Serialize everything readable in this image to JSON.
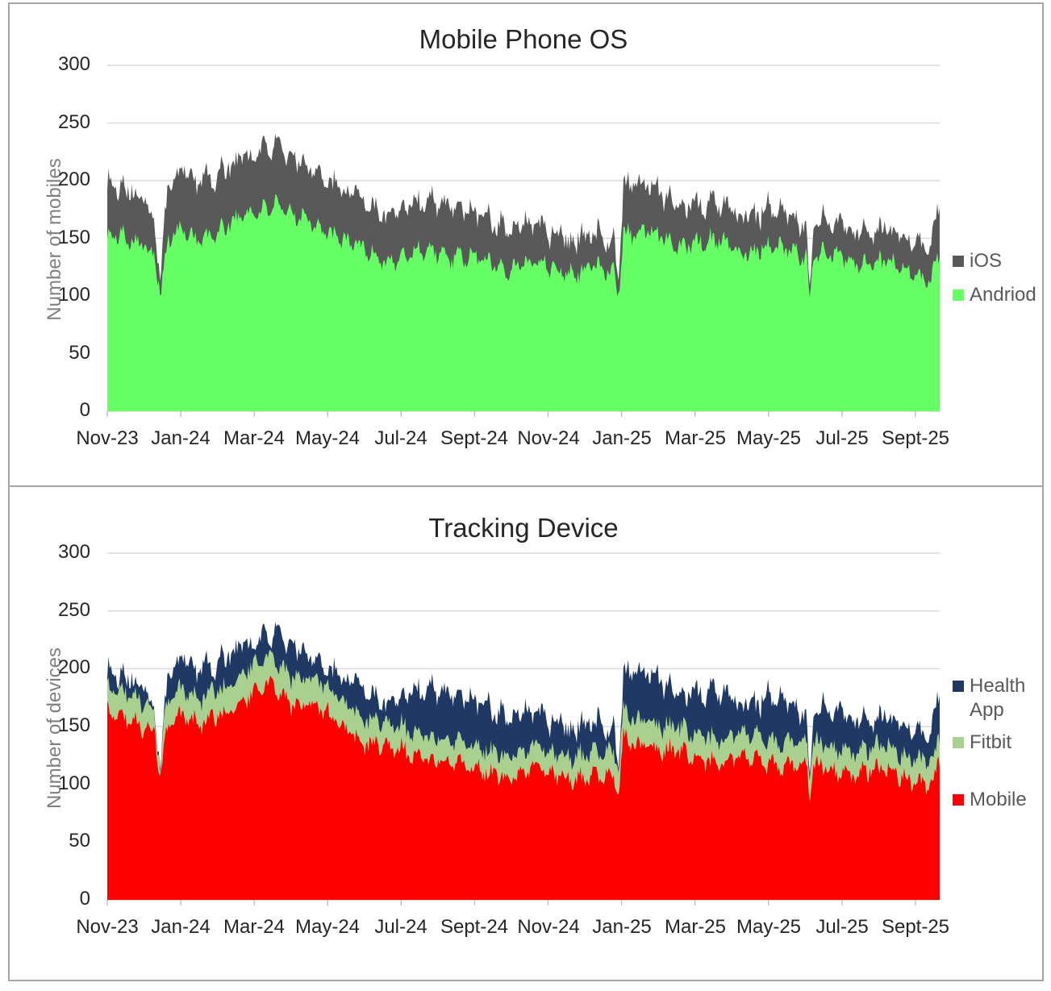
{
  "chart_data": [
    {
      "type": "area",
      "stacked": true,
      "title": "Mobile Phone OS",
      "xlabel": "",
      "ylabel": "Number of mobiles",
      "ylim": [
        0,
        300
      ],
      "y_ticks": [
        300,
        250,
        200,
        150,
        100,
        50,
        0
      ],
      "x_tick_labels": [
        "Nov-23",
        "Jan-24",
        "Mar-24",
        "May-24",
        "Jul-24",
        "Sept-24",
        "Nov-24",
        "Jan-25",
        "Mar-25",
        "May-25",
        "Jul-25",
        "Sept-25"
      ],
      "x_unit": "months since Nov-2023 (daily-resolution noisy series)",
      "x_range_months": [
        0,
        22.66
      ],
      "grid": true,
      "legend_position": "right",
      "legend": [
        {
          "label": "iOS",
          "color": "#595959"
        },
        {
          "label": "Andriod",
          "color": "#66ff66"
        }
      ],
      "series": [
        {
          "name": "Andriod",
          "color": "#66ff66",
          "role": "base-layer",
          "daily_noise_amplitude": 10,
          "anchor_t": [
            0,
            0.5,
            1,
            1.3,
            1.45,
            1.65,
            2,
            2.5,
            3,
            3.5,
            4,
            4.5,
            5,
            5.5,
            6,
            7,
            8,
            9,
            10,
            11,
            12,
            13,
            13.8,
            13.92,
            14.05,
            14.6,
            15,
            16,
            17,
            18,
            19,
            19.05,
            19.12,
            19.22,
            20,
            21,
            22,
            22.4,
            22.66
          ],
          "anchor_v": [
            150,
            148,
            147,
            140,
            103,
            148,
            153,
            150,
            158,
            163,
            172,
            183,
            168,
            165,
            158,
            137,
            133,
            140,
            130,
            128,
            126,
            122,
            122,
            103,
            158,
            155,
            150,
            147,
            144,
            140,
            139,
            138,
            90,
            136,
            133,
            128,
            120,
            118,
            135
          ]
        },
        {
          "name": "iOS",
          "color": "#595959",
          "role": "stacked-band-thickness",
          "daily_noise_amplitude": 7,
          "anchor_t": [
            0,
            1,
            1.45,
            1.65,
            2,
            3,
            4,
            4.5,
            5,
            6,
            7,
            8,
            9,
            10,
            11,
            12,
            13,
            13.8,
            13.92,
            14.05,
            15,
            16,
            17,
            18,
            19,
            19.12,
            19.22,
            20,
            21,
            22,
            22.4,
            22.66
          ],
          "anchor_v": [
            45,
            40,
            18,
            45,
            50,
            50,
            52,
            52,
            48,
            45,
            40,
            42,
            45,
            40,
            35,
            32,
            28,
            26,
            12,
            45,
            38,
            33,
            32,
            32,
            28,
            8,
            28,
            28,
            28,
            28,
            30,
            40
          ]
        }
      ]
    },
    {
      "type": "area",
      "stacked": true,
      "title": "Tracking Device",
      "xlabel": "",
      "ylabel": "Number of devices",
      "ylim": [
        0,
        300
      ],
      "y_ticks": [
        300,
        250,
        200,
        150,
        100,
        50,
        0
      ],
      "x_tick_labels": [
        "Nov-23",
        "Jan-24",
        "Mar-24",
        "May-24",
        "Jul-24",
        "Sept-24",
        "Nov-24",
        "Jan-25",
        "Mar-25",
        "May-25",
        "Jul-25",
        "Sept-25"
      ],
      "x_unit": "months since Nov-2023 (daily-resolution noisy series)",
      "x_range_months": [
        0,
        22.66
      ],
      "grid": true,
      "legend_position": "right",
      "legend": [
        {
          "label": "Health App",
          "color": "#1f3864"
        },
        {
          "label": "Fitbit",
          "color": "#a9d08e"
        },
        {
          "label": "Mobile",
          "color": "#ff0000"
        }
      ],
      "series": [
        {
          "name": "Mobile",
          "color": "#ff0000",
          "role": "base-layer",
          "daily_noise_amplitude": 10,
          "anchor_t": [
            0,
            0.5,
            1,
            1.3,
            1.45,
            1.65,
            2,
            2.5,
            3,
            3.5,
            4,
            4.5,
            5,
            5.5,
            6,
            7,
            8,
            9,
            10,
            11,
            12,
            13,
            13.8,
            13.92,
            14.05,
            14.6,
            15,
            16,
            17,
            18,
            19,
            19.05,
            19.12,
            19.22,
            20,
            21,
            22,
            22.4,
            22.66
          ],
          "anchor_v": [
            160,
            156,
            152,
            145,
            108,
            150,
            155,
            152,
            162,
            168,
            175,
            188,
            172,
            166,
            158,
            138,
            128,
            122,
            113,
            110,
            110,
            105,
            105,
            88,
            140,
            135,
            128,
            124,
            121,
            119,
            117,
            116,
            85,
            114,
            112,
            111,
            104,
            102,
            118
          ]
        },
        {
          "name": "Fitbit",
          "color": "#a9d08e",
          "role": "stacked-band-thickness",
          "daily_noise_amplitude": 4,
          "anchor_t": [
            0,
            2,
            4.5,
            8,
            12,
            14,
            18,
            22.66
          ],
          "anchor_v": [
            22,
            22,
            24,
            20,
            18,
            22,
            20,
            20
          ]
        },
        {
          "name": "Health App",
          "color": "#1f3864",
          "role": "stacked-remainder-total-matches-chart-0",
          "note": "both charts share the same daily total; Health App = total - Mobile - Fitbit"
        }
      ]
    }
  ],
  "styles": {
    "background": "#ffffff",
    "panel_border_color": "#a6a6a6",
    "gridline_color": "#d9d9d9",
    "axis_line_color": "#d9d9d9",
    "tick_mark_color": "#bfbfbf",
    "title_color": "#262626",
    "tick_label_color": "#262626",
    "axis_title_color": "#808080",
    "legend_text_color": "#595959"
  }
}
